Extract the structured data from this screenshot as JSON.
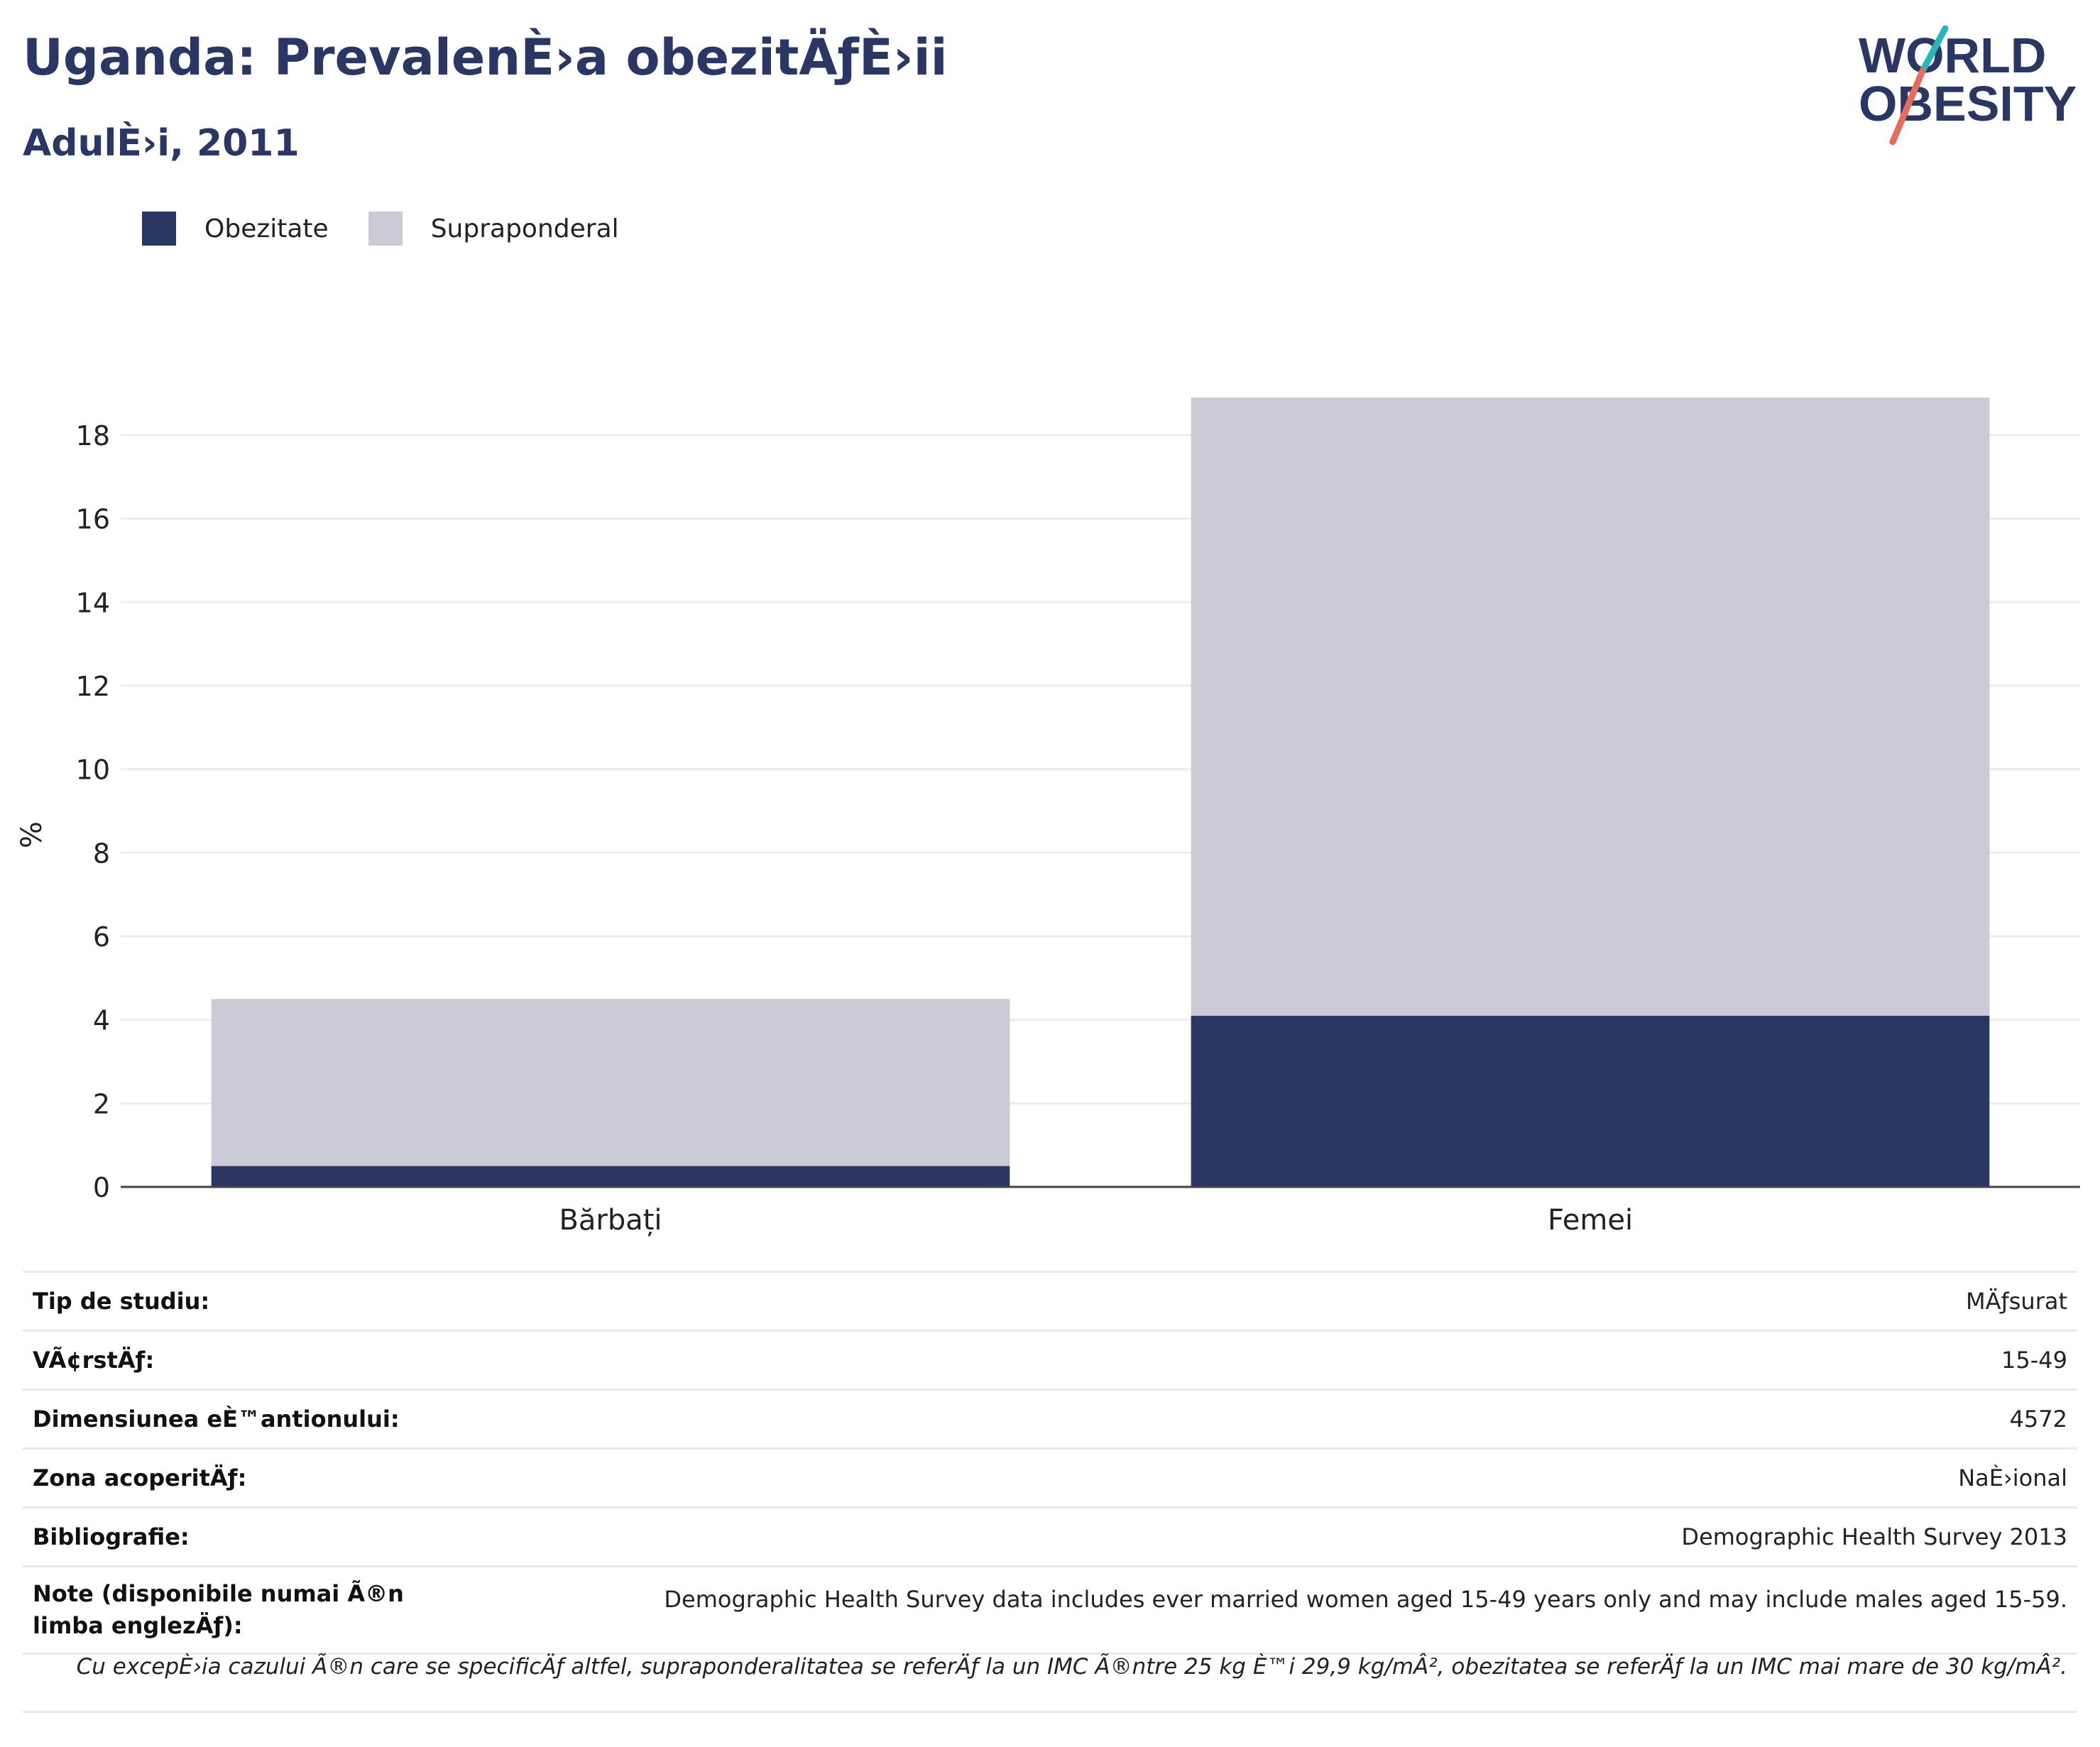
{
  "header": {
    "title": "Uganda: PrevalenÈ›a obezitÄƒÈ›ii",
    "subtitle": "AdulÈ›i, 2011"
  },
  "logo": {
    "line1": "WORLD",
    "line2": "OBESITY"
  },
  "legend": [
    {
      "label": "Obezitate",
      "color": "#2a3663"
    },
    {
      "label": "Supraponderal",
      "color": "#cacbd6"
    }
  ],
  "chart_data": {
    "type": "bar",
    "stacked": true,
    "categories": [
      "Bărbați",
      "Femei"
    ],
    "series": [
      {
        "name": "Obezitate",
        "values": [
          0.5,
          4.1
        ],
        "color": "#2a3663"
      },
      {
        "name": "Supraponderal",
        "values": [
          4.0,
          14.8
        ],
        "color": "#cacbd6"
      }
    ],
    "ylabel": "%",
    "ylim": [
      0,
      18.9
    ],
    "yticks": [
      0,
      2,
      4,
      6,
      8,
      10,
      12,
      14,
      16,
      18
    ],
    "grid": true
  },
  "info": [
    {
      "label": "Tip de studiu:",
      "value": "MÄƒsurat"
    },
    {
      "label": "VÃ¢rstÄƒ:",
      "value": "15-49"
    },
    {
      "label": "Dimensiunea eÈ™antionului:",
      "value": "4572"
    },
    {
      "label": "Zona acoperitÄƒ:",
      "value": "NaÈ›ional"
    },
    {
      "label": "Bibliografie:",
      "value": "Demographic Health Survey 2013"
    },
    {
      "label": "Note (disponibile numai Ã®n limba englezÄƒ):",
      "value": "Demographic Health Survey data includes ever married women aged 15-49 years only and may include males aged 15-59."
    }
  ],
  "footnote": "Cu excepÈ›ia cazului Ã®n care se specificÄƒ altfel, supraponderalitatea se referÄƒ la un IMC Ã®ntre 25 kg È™i 29,9 kg/mÂ², obezitatea se referÄƒ la un IMC mai mare de 30 kg/mÂ²."
}
